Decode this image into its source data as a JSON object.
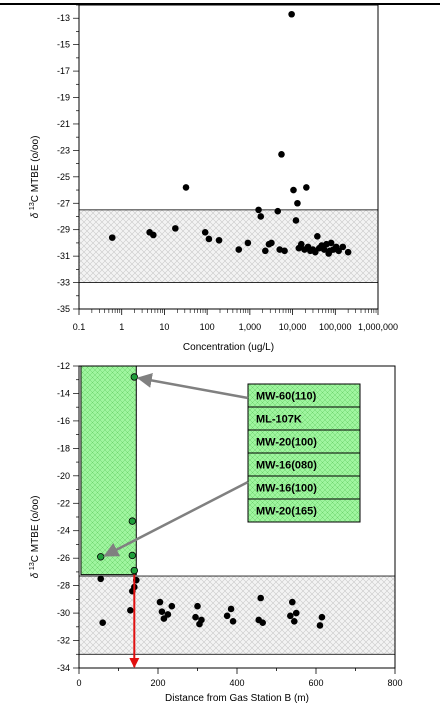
{
  "chart_data": [
    {
      "type": "scatter",
      "title": "",
      "xlabel": "Concentration (ug/L)",
      "ylabel_prefix": "δ",
      "ylabel_super": "13",
      "ylabel": "C MTBE (o/oo)",
      "x_scale": "log",
      "xlim": [
        0.1,
        1000000
      ],
      "ylim": [
        -35,
        -12
      ],
      "x_ticks": [
        0.1,
        1,
        10,
        100,
        1000,
        10000,
        100000,
        1000000
      ],
      "x_tick_labels": [
        "0.1",
        "1",
        "10",
        "100",
        "1,000",
        "10,000",
        "100,000",
        "1,000,000"
      ],
      "y_ticks": [
        -35,
        -33,
        -31,
        -29,
        -27,
        -25,
        -23,
        -21,
        -19,
        -17,
        -15,
        -13
      ],
      "y_tick_labels": [
        "-35",
        "-33",
        "-31",
        "-29",
        "-27",
        "-25",
        "-23",
        "-21",
        "-19",
        "-17",
        "-15",
        "-13"
      ],
      "shaded_band": [
        -33,
        -27.5
      ],
      "points": [
        [
          0.6,
          -29.6
        ],
        [
          4.5,
          -29.2
        ],
        [
          5.5,
          -29.4
        ],
        [
          18,
          -28.9
        ],
        [
          32,
          -25.8
        ],
        [
          90,
          -29.2
        ],
        [
          110,
          -29.7
        ],
        [
          190,
          -29.8
        ],
        [
          550,
          -30.5
        ],
        [
          900,
          -30.0
        ],
        [
          1600,
          -27.5
        ],
        [
          1800,
          -28.0
        ],
        [
          2300,
          -30.6
        ],
        [
          2800,
          -30.1
        ],
        [
          3200,
          -30.0
        ],
        [
          4500,
          -27.6
        ],
        [
          5000,
          -30.5
        ],
        [
          5500,
          -23.3
        ],
        [
          6500,
          -30.6
        ],
        [
          9500,
          -12.7
        ],
        [
          10500,
          -26.0
        ],
        [
          12000,
          -28.3
        ],
        [
          13000,
          -27.0
        ],
        [
          14000,
          -30.4
        ],
        [
          16000,
          -30.1
        ],
        [
          19000,
          -30.5
        ],
        [
          21000,
          -25.8
        ],
        [
          23000,
          -30.3
        ],
        [
          26000,
          -30.6
        ],
        [
          30000,
          -30.5
        ],
        [
          34000,
          -30.7
        ],
        [
          38000,
          -29.5
        ],
        [
          42000,
          -30.4
        ],
        [
          48000,
          -30.2
        ],
        [
          55000,
          -30.5
        ],
        [
          62000,
          -30.1
        ],
        [
          70000,
          -30.8
        ],
        [
          80000,
          -30.0
        ],
        [
          90000,
          -30.5
        ],
        [
          105000,
          -30.3
        ],
        [
          120000,
          -30.6
        ],
        [
          150000,
          -30.3
        ],
        [
          200000,
          -30.7
        ],
        [
          75000,
          -30.6
        ]
      ]
    },
    {
      "type": "scatter",
      "title": "",
      "xlabel": "Distance from Gas Station B (m)",
      "ylabel_prefix": "δ",
      "ylabel_super": "13",
      "ylabel": "C MTBE (o/oo)",
      "xlim": [
        0,
        800
      ],
      "ylim": [
        -34,
        -12
      ],
      "x_ticks": [
        0,
        200,
        400,
        600,
        800
      ],
      "x_tick_labels": [
        "0",
        "200",
        "400",
        "600",
        "800"
      ],
      "y_ticks": [
        -34,
        -32,
        -30,
        -28,
        -26,
        -24,
        -22,
        -20,
        -18,
        -16,
        -14,
        -12
      ],
      "y_tick_labels": [
        "-34",
        "-32",
        "-30",
        "-28",
        "-26",
        "-24",
        "-22",
        "-20",
        "-18",
        "-16",
        "-14",
        "-12"
      ],
      "shaded_band": [
        -33,
        -27.3
      ],
      "highlight_region": {
        "x": [
          5,
          145
        ],
        "y": [
          -27.2,
          -12
        ]
      },
      "highlighted_points": [
        [
          140,
          -12.8
        ],
        [
          135,
          -23.3
        ],
        [
          55,
          -25.9
        ],
        [
          135,
          -25.8
        ],
        [
          140,
          -26.9
        ]
      ],
      "points": [
        [
          55,
          -27.5
        ],
        [
          60,
          -30.7
        ],
        [
          130,
          -29.8
        ],
        [
          135,
          -28.4
        ],
        [
          140,
          -28.1
        ],
        [
          145,
          -27.6
        ],
        [
          205,
          -29.2
        ],
        [
          210,
          -29.9
        ],
        [
          215,
          -30.4
        ],
        [
          225,
          -30.1
        ],
        [
          235,
          -29.5
        ],
        [
          295,
          -30.3
        ],
        [
          300,
          -29.5
        ],
        [
          305,
          -30.8
        ],
        [
          310,
          -30.5
        ],
        [
          375,
          -30.2
        ],
        [
          385,
          -29.7
        ],
        [
          390,
          -30.6
        ],
        [
          455,
          -30.5
        ],
        [
          460,
          -28.9
        ],
        [
          465,
          -30.7
        ],
        [
          535,
          -30.2
        ],
        [
          540,
          -29.2
        ],
        [
          545,
          -30.6
        ],
        [
          550,
          -30.0
        ],
        [
          610,
          -30.9
        ],
        [
          615,
          -30.3
        ]
      ],
      "red_arrow": {
        "x": 140,
        "y_from": -27.2,
        "y_to": -34
      },
      "legend": {
        "entries": [
          "MW-60(110)",
          "ML-107K",
          "MW-20(100)",
          "MW-16(080)",
          "MW-16(100)",
          "MW-20(165)"
        ]
      },
      "callout_targets": [
        [
          140,
          -12.8
        ],
        [
          55,
          -25.9
        ]
      ]
    }
  ],
  "colors": {
    "marker": "#000000",
    "highlight_fill": "#9ff59f",
    "highlight_marker": "#1f9e3a",
    "band_fill": "#efefef",
    "callout_arrow": "#808080",
    "red_arrow": "#e01010"
  }
}
